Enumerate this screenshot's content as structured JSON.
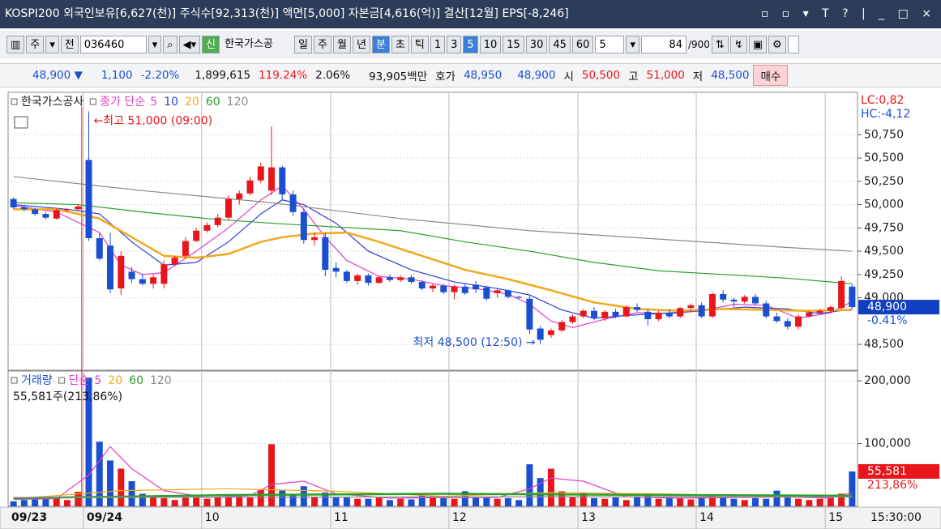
{
  "title_bar": {
    "text": "KOSPI200 외국인보유[6,627(천)] 주식수[92,313(천)] 액면[5,000] 자본금[4,616(억)] 결산[12월] EPS[-8,246]"
  },
  "toolbar": {
    "items": [
      "주",
      "전",
      "036460",
      "신",
      "한국가스공",
      "일",
      "주",
      "월",
      "년",
      "분",
      "초",
      "틱",
      "1",
      "3",
      "5",
      "10",
      "15",
      "30",
      "45",
      "60",
      "5",
      "84",
      "/900"
    ]
  },
  "quote_bar": {
    "items": [
      "48,900 ▼",
      "1,100",
      "-2.20%",
      "1,899,615",
      "119.24%",
      "2.06%",
      "93,905백만",
      "호가",
      "48,950",
      "48,900",
      "시",
      "50,500",
      "고",
      "51,000",
      "저",
      "48,500",
      "매수"
    ]
  },
  "chart_data": [
    {
      "type": "candlestick",
      "title": "한국가스공사",
      "ma_label": "종가 단순",
      "up_color": "#e8161b",
      "down_color": "#1b4fd1",
      "open": [
        50060,
        49970,
        49950,
        49900,
        49850,
        49940,
        49950,
        50480,
        49640,
        49560,
        49100,
        49280,
        49200,
        49150,
        49150,
        49360,
        49450,
        49610,
        49720,
        49780,
        49860,
        50060,
        50120,
        50260,
        50150,
        50400,
        50110,
        49920,
        49620,
        49650,
        49320,
        49280,
        49180,
        49240,
        49160,
        49220,
        49190,
        49220,
        49170,
        49100,
        49130,
        49060,
        49120,
        49140,
        49110,
        49050,
        49080,
        49010,
        48990,
        48670,
        48600,
        48650,
        48740,
        48800,
        48860,
        48780,
        48850,
        48800,
        48900,
        48850,
        48770,
        48840,
        48800,
        48890,
        48920,
        48800,
        49040,
        48980,
        48960,
        49010,
        48940,
        48800,
        48750,
        48690,
        48800,
        48840,
        48860,
        48890,
        49120
      ],
      "high": [
        50080,
        49990,
        49960,
        49920,
        49960,
        49960,
        50000,
        51000,
        49700,
        49700,
        49500,
        49330,
        49260,
        49250,
        49400,
        49450,
        49650,
        49750,
        49810,
        49900,
        50100,
        50150,
        50300,
        50450,
        50840,
        50420,
        50150,
        49960,
        49700,
        49700,
        49380,
        49300,
        49260,
        49260,
        49240,
        49250,
        49240,
        49240,
        49190,
        49150,
        49150,
        49140,
        49150,
        49180,
        49130,
        49100,
        49090,
        49020,
        49020,
        48700,
        48670,
        48760,
        48820,
        48880,
        48900,
        48870,
        48880,
        48920,
        48940,
        48880,
        48860,
        48880,
        48900,
        48940,
        48950,
        49060,
        49080,
        49000,
        49030,
        49040,
        48970,
        48840,
        48780,
        48820,
        48860,
        48880,
        48920,
        49230,
        49150
      ],
      "low": [
        49950,
        49930,
        49880,
        49840,
        49840,
        49920,
        49930,
        49610,
        49400,
        49050,
        49030,
        49160,
        49130,
        49100,
        49100,
        49340,
        49420,
        49600,
        49700,
        49760,
        49830,
        50000,
        50100,
        50230,
        50100,
        50050,
        49880,
        49580,
        49560,
        49230,
        49220,
        49160,
        49140,
        49130,
        49150,
        49170,
        49170,
        49150,
        49080,
        49060,
        49040,
        48980,
        49030,
        49050,
        48970,
        49000,
        48990,
        48990,
        48610,
        48500,
        48570,
        48630,
        48720,
        48780,
        48760,
        48750,
        48780,
        48790,
        48850,
        48700,
        48750,
        48780,
        48780,
        48860,
        48780,
        48780,
        48950,
        48900,
        48940,
        48920,
        48780,
        48730,
        48660,
        48660,
        48790,
        48820,
        48840,
        48870,
        48880
      ],
      "close": [
        49970,
        49950,
        49900,
        49860,
        49940,
        49950,
        49980,
        49640,
        49420,
        49090,
        49450,
        49200,
        49150,
        49220,
        49360,
        49430,
        49610,
        49720,
        49780,
        49860,
        50060,
        50120,
        50260,
        50410,
        50400,
        50110,
        49920,
        49620,
        49650,
        49300,
        49280,
        49180,
        49240,
        49160,
        49220,
        49190,
        49220,
        49170,
        49100,
        49130,
        49060,
        49120,
        49050,
        49090,
        48990,
        49080,
        49010,
        49000,
        48660,
        48550,
        48650,
        48740,
        48800,
        48860,
        48780,
        48850,
        48800,
        48900,
        48870,
        48770,
        48840,
        48800,
        48890,
        48920,
        48800,
        49040,
        48980,
        48960,
        49010,
        48940,
        48800,
        48750,
        48690,
        48800,
        48840,
        48860,
        48900,
        49180,
        48900
      ],
      "series": [
        {
          "name": "5",
          "color": "#e040c8",
          "x": [
            0,
            4,
            8,
            10,
            12,
            14,
            17,
            20,
            23,
            25,
            27,
            29,
            31,
            34,
            37,
            40,
            43,
            46,
            48,
            50,
            52,
            55,
            58,
            61,
            64,
            67,
            70,
            73,
            76,
            78
          ],
          "values": [
            49990,
            49920,
            49700,
            49350,
            49250,
            49270,
            49500,
            49750,
            50050,
            50200,
            49950,
            49650,
            49400,
            49230,
            49200,
            49130,
            49100,
            49040,
            48930,
            48750,
            48680,
            48770,
            48840,
            48830,
            48860,
            48930,
            48920,
            48780,
            48840,
            48960
          ]
        },
        {
          "name": "10",
          "color": "#2d3fd6",
          "x": [
            0,
            5,
            8,
            11,
            14,
            17,
            20,
            23,
            25,
            27,
            30,
            33,
            37,
            41,
            45,
            48,
            51,
            54,
            57,
            60,
            64,
            68,
            72,
            75,
            78
          ],
          "values": [
            50000,
            49950,
            49900,
            49600,
            49350,
            49380,
            49600,
            49900,
            50050,
            50000,
            49800,
            49500,
            49300,
            49170,
            49100,
            49030,
            48870,
            48780,
            48810,
            48830,
            48860,
            48900,
            48880,
            48830,
            48880
          ]
        },
        {
          "name": "20",
          "color": "#f0a81c",
          "x": [
            0,
            4,
            8,
            11,
            14,
            17,
            20,
            23,
            25,
            28,
            31,
            34,
            38,
            42,
            46,
            50,
            54,
            58,
            62,
            66,
            70,
            74,
            78
          ],
          "values": [
            49950,
            49950,
            49850,
            49650,
            49450,
            49430,
            49470,
            49600,
            49650,
            49690,
            49700,
            49600,
            49450,
            49300,
            49200,
            49080,
            48950,
            48880,
            48860,
            48880,
            48870,
            48860,
            48870
          ]
        },
        {
          "name": "60",
          "color": "#2aa02a",
          "x": [
            0,
            6,
            12,
            18,
            24,
            30,
            36,
            42,
            48,
            54,
            60,
            66,
            72,
            78
          ],
          "values": [
            50020,
            50000,
            49920,
            49850,
            49800,
            49760,
            49720,
            49600,
            49500,
            49380,
            49290,
            49250,
            49210,
            49150
          ]
        },
        {
          "name": "120",
          "color": "#8a8a8a",
          "x": [
            0,
            12,
            24,
            36,
            48,
            60,
            72,
            78
          ],
          "values": [
            50300,
            50150,
            50020,
            49850,
            49720,
            49630,
            49540,
            49500
          ]
        }
      ],
      "ylim": [
        48240,
        51170
      ],
      "yticks": [
        {
          "value": 48500,
          "label": "48,500"
        },
        {
          "value": 49000,
          "label": "49,000"
        },
        {
          "value": 49250,
          "label": "49,250"
        },
        {
          "value": 49500,
          "label": "49,500"
        },
        {
          "value": 49750,
          "label": "49,750"
        },
        {
          "value": 50000,
          "label": "50,000"
        },
        {
          "value": 50250,
          "label": "50,250"
        },
        {
          "value": 50500,
          "label": "50,500"
        },
        {
          "value": 50750,
          "label": "50,750"
        }
      ],
      "grid": true,
      "high_note": "←최고 51,000 (09:00)",
      "low_note": "최저 48,500 (12:50) →",
      "indicators": [
        "LC:0,82",
        "HC:-4,12"
      ],
      "price_badge": "48,900",
      "price_badge_change": "-0.41%"
    },
    {
      "type": "bar",
      "title": "거래량",
      "ma_label": "단순",
      "note": "55,581주(213,86%)",
      "categories": [
        "09/23",
        null,
        null,
        null,
        null,
        null,
        null,
        "09/24",
        null,
        null,
        null,
        null,
        null,
        null,
        null,
        null,
        null,
        null,
        "10",
        null,
        null,
        null,
        null,
        null,
        null,
        null,
        null,
        null,
        null,
        null,
        "11",
        null,
        null,
        null,
        null,
        null,
        null,
        null,
        null,
        null,
        null,
        "12",
        null,
        null,
        null,
        null,
        null,
        null,
        null,
        null,
        null,
        null,
        null,
        "13",
        null,
        null,
        null,
        null,
        null,
        null,
        null,
        null,
        null,
        null,
        "14",
        null,
        null,
        null,
        null,
        null,
        null,
        null,
        null,
        null,
        null,
        null,
        "15",
        null,
        null
      ],
      "values": [
        8000,
        10000,
        12000,
        12000,
        14000,
        10000,
        23000,
        205000,
        103000,
        73000,
        60000,
        40000,
        20000,
        15000,
        13000,
        10000,
        14000,
        15000,
        12000,
        14000,
        16000,
        18000,
        14000,
        26000,
        99000,
        25000,
        20000,
        32000,
        15000,
        22000,
        15000,
        14000,
        12000,
        12000,
        14000,
        10000,
        12000,
        11000,
        18000,
        16000,
        13000,
        12000,
        24000,
        14000,
        15000,
        12000,
        13000,
        10000,
        67000,
        45000,
        60000,
        24000,
        15000,
        22000,
        13000,
        12000,
        14000,
        10000,
        16000,
        20000,
        12000,
        14000,
        13000,
        11000,
        15000,
        17000,
        14000,
        12000,
        10000,
        13000,
        12000,
        25000,
        14000,
        12000,
        10000,
        12000,
        14000,
        20000,
        55581
      ],
      "series": [
        {
          "name": "5",
          "color": "#e040c8",
          "x": [
            0,
            4,
            7,
            9,
            11,
            14,
            18,
            22,
            24,
            27,
            30,
            35,
            40,
            45,
            48,
            50,
            53,
            57,
            62,
            67,
            72,
            76,
            78
          ],
          "values": [
            11000,
            12000,
            50000,
            95000,
            60000,
            25000,
            14000,
            17000,
            35000,
            40000,
            20000,
            13000,
            14000,
            14000,
            28000,
            45000,
            40000,
            15000,
            13000,
            14000,
            15000,
            13000,
            22000
          ]
        },
        {
          "name": "20",
          "color": "#f0a81c",
          "x": [
            0,
            10,
            20,
            30,
            40,
            50,
            60,
            70,
            78
          ],
          "values": [
            12000,
            25000,
            28000,
            24000,
            16000,
            22000,
            20000,
            16000,
            17000
          ]
        },
        {
          "name": "60",
          "color": "#2aa02a",
          "x": [
            0,
            20,
            40,
            60,
            78
          ],
          "values": [
            13000,
            18000,
            20000,
            18000,
            17000
          ]
        },
        {
          "name": "120",
          "color": "#8a8a8a",
          "x": [
            0,
            40,
            78
          ],
          "values": [
            14000,
            15000,
            15000
          ]
        }
      ],
      "ylim": [
        0,
        213000
      ],
      "yticks": [
        {
          "value": 100000,
          "label": "100,000"
        },
        {
          "value": 200000,
          "label": "200,000"
        }
      ],
      "grid": true,
      "volume_badge": "55,581",
      "volume_badge_change": "213,86%",
      "time_label": "15:30:00"
    }
  ]
}
